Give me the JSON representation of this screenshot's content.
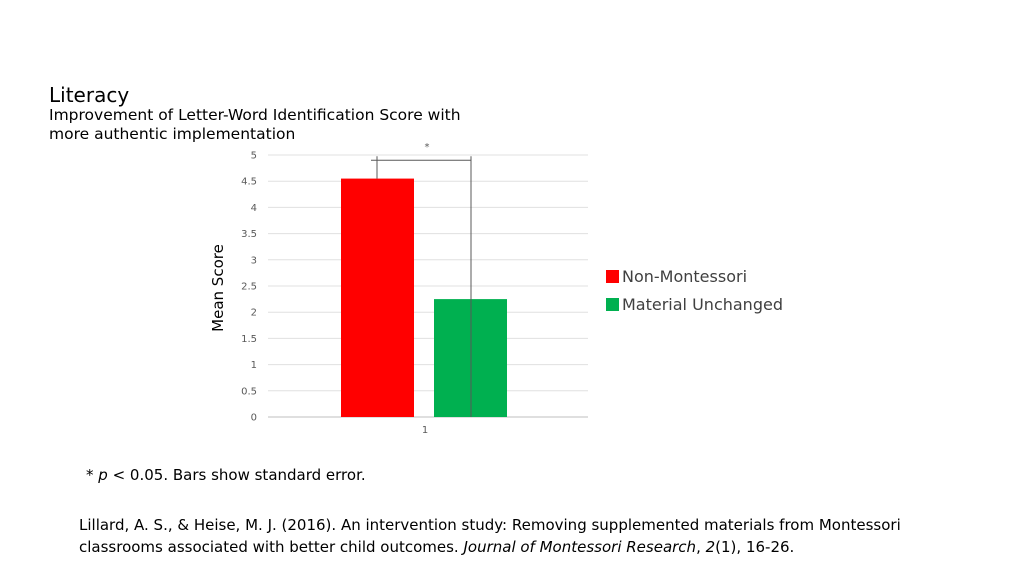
{
  "slide": {
    "title": "Literacy",
    "subtitle": "Improvement of Letter-Word Identification Score with more authentic implementation"
  },
  "footnote": {
    "star": "* ",
    "p": "p",
    "rest": " <  0.05. Bars show standard error."
  },
  "citation": {
    "authors": "Lillard, A. S., & Heise, M. J. (2016). An intervention study: Removing supplemented materials from Montessori classrooms associated with better child outcomes. ",
    "journal": "Journal of Montessori Research",
    "comma": ", ",
    "volume": "2",
    "issue_pages": "(1), 16-26."
  },
  "chart_data": {
    "type": "bar",
    "categories": [
      "1"
    ],
    "series": [
      {
        "name": "Non-Montessori",
        "values": [
          4.55
        ],
        "color": "#ff0000"
      },
      {
        "name": "Material Unchanged",
        "values": [
          2.25
        ],
        "color": "#00b050"
      }
    ],
    "ylabel": "Mean Score",
    "ylim": [
      0,
      5
    ],
    "yticks": [
      "0",
      "0.5",
      "1",
      "1.5",
      "2",
      "2.5",
      "3",
      "3.5",
      "4",
      "4.5",
      "5"
    ],
    "significance_label": "*",
    "grid": true,
    "legend_position": "right"
  }
}
